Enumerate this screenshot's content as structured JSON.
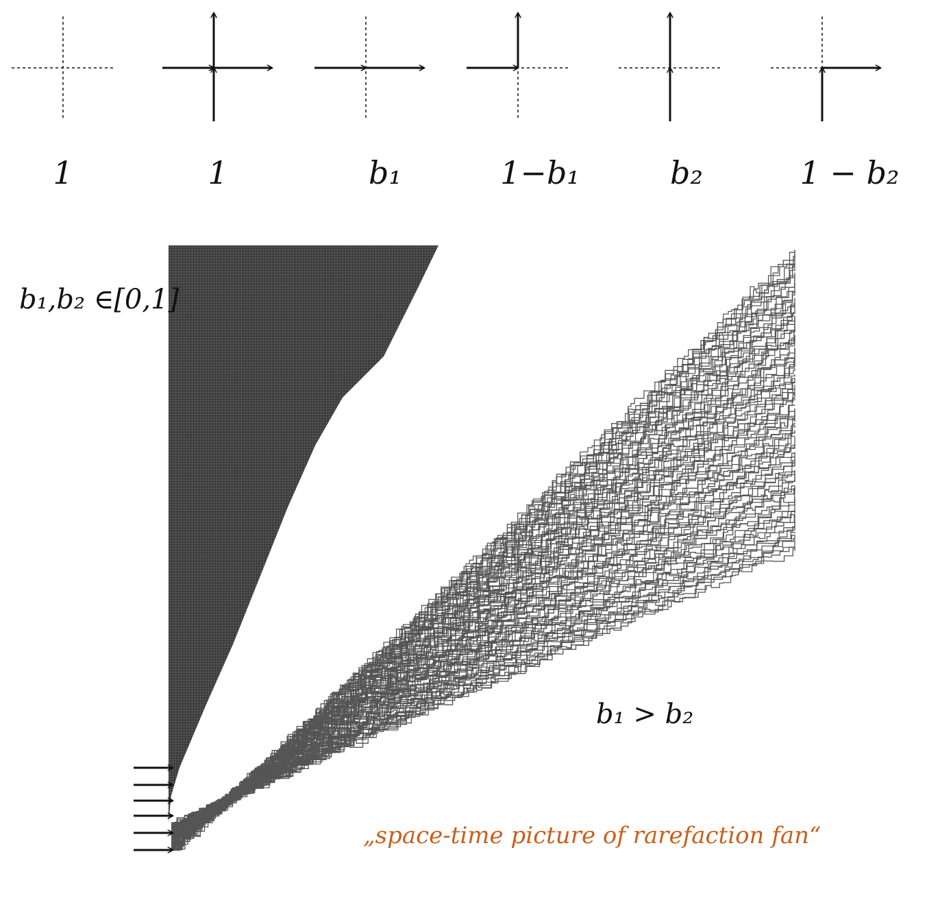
{
  "vertex_weights": [
    {
      "label": "1",
      "arrows": []
    },
    {
      "label": "1",
      "arrows": [
        "in-left",
        "out-right",
        "in-bottom",
        "out-top"
      ]
    },
    {
      "label": "b₁",
      "arrows": [
        "in-left",
        "out-right"
      ]
    },
    {
      "label": "1−b₁",
      "arrows": [
        "in-left",
        "out-top"
      ]
    },
    {
      "label": "b₂",
      "arrows": [
        "in-bottom",
        "out-top"
      ]
    },
    {
      "label": "1 − b₂",
      "arrows": [
        "in-bottom",
        "out-right"
      ]
    }
  ],
  "parameter_range": "b₁,b₂ ∈[0,1]",
  "condition": "b₁ > b₂",
  "caption": "„space-time picture of rarefaction fan“",
  "colors": {
    "ink": "#111111",
    "caption": "#c8601c",
    "dense_region": "#3b3b3b",
    "path": "#555555"
  }
}
